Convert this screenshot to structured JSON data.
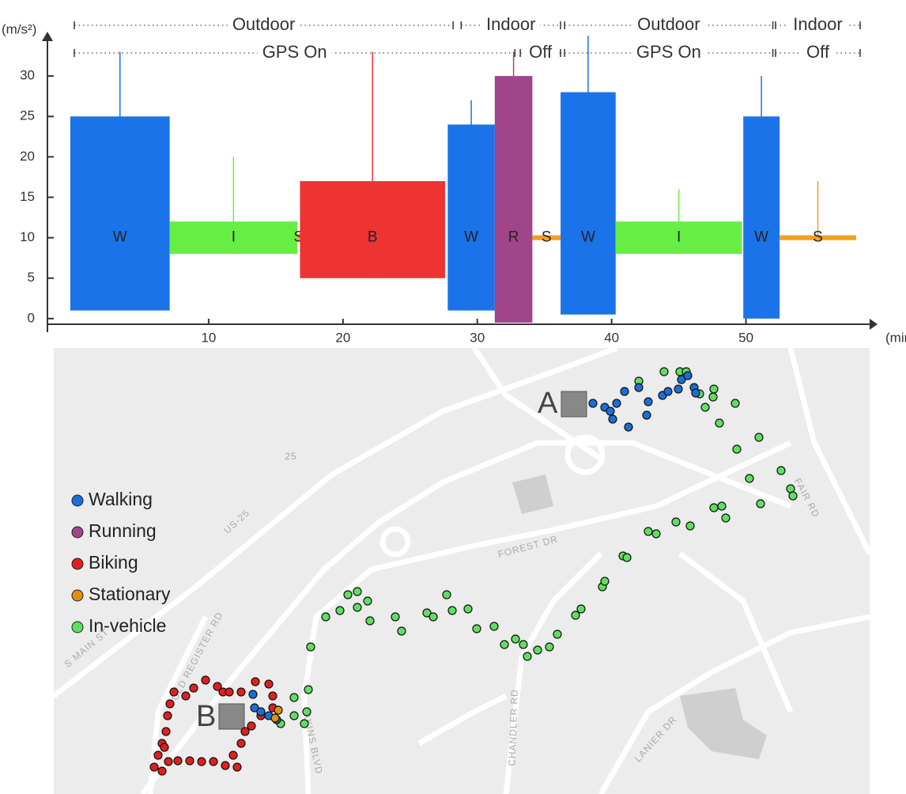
{
  "chart_data": [
    {
      "type": "signal",
      "y_label": "(m/s²)",
      "x_label": "(min)",
      "xlim": [
        -2,
        59.5
      ],
      "xticks": [
        10,
        20,
        30,
        40,
        50
      ],
      "ylim": [
        -0.7,
        35
      ],
      "yticks": [
        0,
        5,
        10,
        15,
        20,
        25,
        30
      ],
      "segments": [
        {
          "label": "W",
          "start": -0.3,
          "end": 7.1,
          "low": 1,
          "high": 25,
          "peak": 33,
          "color": "#1a73e8"
        },
        {
          "label": "I",
          "start": 7.1,
          "end": 16.6,
          "low": 8,
          "high": 12,
          "peak": 20,
          "color": "#66ee44"
        },
        {
          "label": "S",
          "start": 16.6,
          "end": 16.8,
          "low": 9.5,
          "high": 10.5,
          "peak": 10.5,
          "color": "#f0a020"
        },
        {
          "label": "B",
          "start": 16.8,
          "end": 27.6,
          "low": 5,
          "high": 17,
          "peak": 33,
          "color": "#ee3333"
        },
        {
          "label": "W",
          "start": 27.8,
          "end": 31.3,
          "low": 1,
          "high": 24,
          "peak": 27,
          "color": "#1a73e8"
        },
        {
          "label": "R",
          "start": 31.3,
          "end": 34.1,
          "low": -0.5,
          "high": 30,
          "peak": 33,
          "color": "#a0458a"
        },
        {
          "label": "S",
          "start": 34.1,
          "end": 36.2,
          "low": 9.7,
          "high": 10.3,
          "peak": 10.3,
          "color": "#f0a020"
        },
        {
          "label": "W",
          "start": 36.2,
          "end": 40.3,
          "low": 0.5,
          "high": 28,
          "peak": 35,
          "color": "#1a73e8"
        },
        {
          "label": "I",
          "start": 40.3,
          "end": 49.7,
          "low": 8,
          "high": 12,
          "peak": 16,
          "color": "#66ee44"
        },
        {
          "label": "W",
          "start": 49.8,
          "end": 52.5,
          "low": 0,
          "high": 25,
          "peak": 30,
          "color": "#1a73e8"
        },
        {
          "label": "S",
          "start": 52.5,
          "end": 58.2,
          "low": 9.7,
          "high": 10.3,
          "peak": 17,
          "color": "#f0a020"
        }
      ],
      "bands": [
        [
          {
            "label": "Outdoor",
            "start": 0,
            "end": 28.2
          },
          {
            "label": "Indoor",
            "start": 28.8,
            "end": 36.2
          },
          {
            "label": "Outdoor",
            "start": 36.5,
            "end": 52
          },
          {
            "label": "Indoor",
            "start": 52.2,
            "end": 58.5
          }
        ],
        [
          {
            "label": "GPS On",
            "start": 0,
            "end": 32.8
          },
          {
            "label": "Off",
            "start": 33.2,
            "end": 36.2
          },
          {
            "label": "GPS On",
            "start": 36.5,
            "end": 52
          },
          {
            "label": "Off",
            "start": 52.2,
            "end": 58.5
          }
        ]
      ]
    }
  ],
  "map": {
    "legend": [
      {
        "name": "Walking",
        "color": "#1a6fd6"
      },
      {
        "name": "Running",
        "color": "#a0458a"
      },
      {
        "name": "Biking",
        "color": "#e02020"
      },
      {
        "name": "Stationary",
        "color": "#e09010"
      },
      {
        "name": "In-vehicle",
        "color": "#5ee05e"
      }
    ],
    "markers": [
      "A",
      "B"
    ],
    "streets": [
      "US-25",
      "25",
      "FOREST DR",
      "S MAIN ST",
      "OLD REGISTER RD",
      "AKINS BLVD",
      "CHANDLER RD",
      "LANIER DR",
      "FAIR RD"
    ]
  }
}
